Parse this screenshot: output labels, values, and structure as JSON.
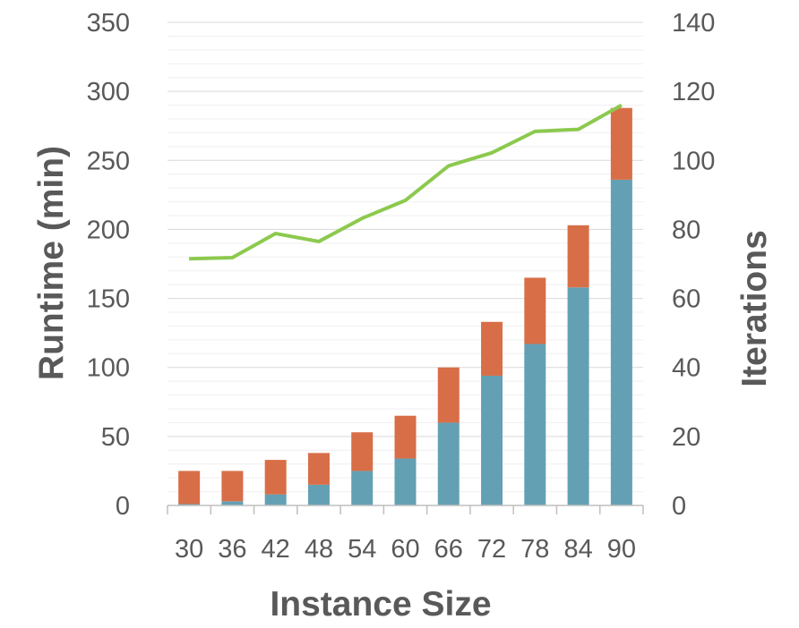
{
  "chart_data": {
    "type": "bar",
    "stacked": true,
    "categories": [
      "30",
      "36",
      "42",
      "48",
      "54",
      "60",
      "66",
      "72",
      "78",
      "84",
      "90"
    ],
    "series": [
      {
        "kind": "bar",
        "axis": "left",
        "color": "#64a0b4",
        "values": [
          1,
          3,
          8,
          15,
          25,
          34,
          60,
          94,
          117,
          158,
          236
        ]
      },
      {
        "kind": "bar",
        "axis": "left",
        "color": "#d86e47",
        "values": [
          24,
          22,
          25,
          23,
          28,
          31,
          40,
          39,
          48,
          45,
          52
        ]
      },
      {
        "kind": "line",
        "axis": "right",
        "color": "#8cc94e",
        "values": [
          71.5,
          71.8,
          78.8,
          76.5,
          83.2,
          88.4,
          98.4,
          102.2,
          108.4,
          109,
          116
        ]
      }
    ],
    "xlabel": "Instance Size",
    "ylabel": "Runtime (min)",
    "y2label": "Iterations",
    "ylim": [
      0,
      350
    ],
    "y2lim": [
      0,
      140
    ],
    "yticks": [
      "0",
      "50",
      "100",
      "150",
      "200",
      "250",
      "300",
      "350"
    ],
    "y2ticks": [
      "0",
      "20",
      "40",
      "60",
      "80",
      "100",
      "120",
      "140"
    ],
    "grid": true,
    "legend": "none"
  }
}
